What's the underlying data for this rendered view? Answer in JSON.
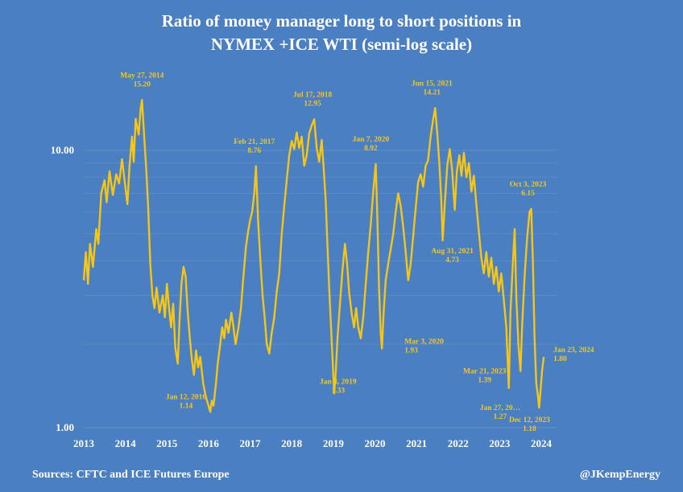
{
  "title": {
    "line1": "Ratio of money manager long to short positions in",
    "line2": "NYMEX +ICE WTI (semi-log scale)"
  },
  "footer": {
    "source": "Sources: CFTC and ICE Futures Europe",
    "credit": "@JKempEnergy"
  },
  "colors": {
    "background": "#4a7fc1",
    "line": "#f5c518",
    "annotation": "#f3c624",
    "grid": "#6d98cf"
  },
  "chart_data": {
    "type": "line",
    "y_scale": "log",
    "ylim": [
      1.0,
      20.0
    ],
    "xlim": [
      2013.0,
      2024.0
    ],
    "ytick_labels": [
      "1.00",
      "10.00"
    ],
    "ytick_values": [
      1.0,
      10.0
    ],
    "xtick_labels": [
      "2013",
      "2014",
      "2015",
      "2016",
      "2017",
      "2018",
      "2019",
      "2020",
      "2021",
      "2022",
      "2023",
      "2024"
    ],
    "grid": true,
    "series": [
      {
        "points": [
          [
            2013.0,
            3.4
          ],
          [
            2013.05,
            4.3
          ],
          [
            2013.1,
            3.3
          ],
          [
            2013.15,
            4.6
          ],
          [
            2013.22,
            3.8
          ],
          [
            2013.3,
            5.2
          ],
          [
            2013.35,
            4.6
          ],
          [
            2013.42,
            7.0
          ],
          [
            2013.5,
            7.8
          ],
          [
            2013.55,
            6.5
          ],
          [
            2013.62,
            8.4
          ],
          [
            2013.7,
            6.9
          ],
          [
            2013.78,
            8.2
          ],
          [
            2013.85,
            7.6
          ],
          [
            2013.92,
            9.3
          ],
          [
            2014.0,
            7.4
          ],
          [
            2014.05,
            6.4
          ],
          [
            2014.1,
            8.8
          ],
          [
            2014.16,
            11.2
          ],
          [
            2014.2,
            9.1
          ],
          [
            2014.25,
            13.0
          ],
          [
            2014.32,
            11.4
          ],
          [
            2014.37,
            14.2
          ],
          [
            2014.4,
            15.2
          ],
          [
            2014.44,
            12.0
          ],
          [
            2014.5,
            8.6
          ],
          [
            2014.55,
            6.2
          ],
          [
            2014.6,
            3.9
          ],
          [
            2014.65,
            3.0
          ],
          [
            2014.7,
            2.7
          ],
          [
            2014.75,
            3.2
          ],
          [
            2014.82,
            2.6
          ],
          [
            2014.9,
            3.0
          ],
          [
            2014.95,
            2.5
          ],
          [
            2015.0,
            3.3
          ],
          [
            2015.05,
            2.7
          ],
          [
            2015.1,
            2.3
          ],
          [
            2015.15,
            2.8
          ],
          [
            2015.2,
            1.95
          ],
          [
            2015.26,
            1.7
          ],
          [
            2015.3,
            2.4
          ],
          [
            2015.35,
            3.3
          ],
          [
            2015.4,
            3.8
          ],
          [
            2015.45,
            3.5
          ],
          [
            2015.5,
            2.6
          ],
          [
            2015.55,
            2.1
          ],
          [
            2015.6,
            1.75
          ],
          [
            2015.65,
            1.55
          ],
          [
            2015.7,
            1.9
          ],
          [
            2015.75,
            1.65
          ],
          [
            2015.8,
            1.8
          ],
          [
            2015.87,
            1.45
          ],
          [
            2015.93,
            1.3
          ],
          [
            2016.0,
            1.2
          ],
          [
            2016.04,
            1.14
          ],
          [
            2016.08,
            1.25
          ],
          [
            2016.12,
            1.2
          ],
          [
            2016.18,
            1.45
          ],
          [
            2016.22,
            1.7
          ],
          [
            2016.28,
            2.0
          ],
          [
            2016.33,
            2.3
          ],
          [
            2016.38,
            2.1
          ],
          [
            2016.42,
            2.45
          ],
          [
            2016.48,
            2.2
          ],
          [
            2016.55,
            2.6
          ],
          [
            2016.6,
            2.3
          ],
          [
            2016.65,
            2.0
          ],
          [
            2016.72,
            2.3
          ],
          [
            2016.78,
            2.7
          ],
          [
            2016.83,
            3.4
          ],
          [
            2016.9,
            4.5
          ],
          [
            2016.96,
            5.2
          ],
          [
            2017.0,
            5.6
          ],
          [
            2017.05,
            6.0
          ],
          [
            2017.1,
            7.0
          ],
          [
            2017.14,
            8.76
          ],
          [
            2017.19,
            5.6
          ],
          [
            2017.25,
            3.9
          ],
          [
            2017.3,
            3.0
          ],
          [
            2017.35,
            2.5
          ],
          [
            2017.4,
            2.0
          ],
          [
            2017.46,
            1.85
          ],
          [
            2017.52,
            2.2
          ],
          [
            2017.58,
            2.5
          ],
          [
            2017.64,
            3.1
          ],
          [
            2017.7,
            3.6
          ],
          [
            2017.76,
            5.0
          ],
          [
            2017.82,
            6.3
          ],
          [
            2017.88,
            7.8
          ],
          [
            2017.94,
            9.6
          ],
          [
            2018.0,
            10.8
          ],
          [
            2018.06,
            10.1
          ],
          [
            2018.12,
            11.6
          ],
          [
            2018.18,
            10.2
          ],
          [
            2018.24,
            11.2
          ],
          [
            2018.3,
            8.8
          ],
          [
            2018.36,
            9.6
          ],
          [
            2018.42,
            11.5
          ],
          [
            2018.48,
            12.3
          ],
          [
            2018.54,
            12.95
          ],
          [
            2018.6,
            10.2
          ],
          [
            2018.66,
            9.1
          ],
          [
            2018.72,
            10.9
          ],
          [
            2018.77,
            8.6
          ],
          [
            2018.82,
            6.5
          ],
          [
            2018.86,
            4.5
          ],
          [
            2018.9,
            3.2
          ],
          [
            2018.94,
            2.4
          ],
          [
            2018.98,
            1.8
          ],
          [
            2019.02,
            1.33
          ],
          [
            2019.06,
            1.6
          ],
          [
            2019.1,
            2.1
          ],
          [
            2019.16,
            2.8
          ],
          [
            2019.22,
            3.7
          ],
          [
            2019.28,
            4.6
          ],
          [
            2019.33,
            3.9
          ],
          [
            2019.38,
            3.1
          ],
          [
            2019.44,
            2.6
          ],
          [
            2019.5,
            2.3
          ],
          [
            2019.55,
            2.7
          ],
          [
            2019.6,
            2.3
          ],
          [
            2019.66,
            2.1
          ],
          [
            2019.72,
            2.5
          ],
          [
            2019.78,
            3.3
          ],
          [
            2019.84,
            4.3
          ],
          [
            2019.9,
            5.4
          ],
          [
            2019.96,
            7.1
          ],
          [
            2020.02,
            8.92
          ],
          [
            2020.06,
            5.6
          ],
          [
            2020.1,
            3.2
          ],
          [
            2020.14,
            2.2
          ],
          [
            2020.17,
            1.93
          ],
          [
            2020.21,
            2.6
          ],
          [
            2020.26,
            3.4
          ],
          [
            2020.32,
            3.9
          ],
          [
            2020.38,
            4.4
          ],
          [
            2020.44,
            5.0
          ],
          [
            2020.5,
            6.0
          ],
          [
            2020.56,
            7.0
          ],
          [
            2020.62,
            6.3
          ],
          [
            2020.68,
            5.3
          ],
          [
            2020.74,
            4.3
          ],
          [
            2020.8,
            3.4
          ],
          [
            2020.86,
            3.9
          ],
          [
            2020.92,
            4.9
          ],
          [
            2020.98,
            6.2
          ],
          [
            2021.04,
            7.7
          ],
          [
            2021.1,
            8.2
          ],
          [
            2021.16,
            7.4
          ],
          [
            2021.22,
            8.8
          ],
          [
            2021.28,
            9.2
          ],
          [
            2021.34,
            11.2
          ],
          [
            2021.4,
            12.9
          ],
          [
            2021.45,
            14.21
          ],
          [
            2021.5,
            11.5
          ],
          [
            2021.55,
            9.0
          ],
          [
            2021.6,
            6.4
          ],
          [
            2021.63,
            4.73
          ],
          [
            2021.68,
            6.4
          ],
          [
            2021.74,
            8.8
          ],
          [
            2021.8,
            10.1
          ],
          [
            2021.86,
            8.4
          ],
          [
            2021.92,
            6.1
          ],
          [
            2021.97,
            8.4
          ],
          [
            2022.03,
            9.6
          ],
          [
            2022.08,
            8.1
          ],
          [
            2022.14,
            9.8
          ],
          [
            2022.2,
            8.0
          ],
          [
            2022.26,
            9.0
          ],
          [
            2022.32,
            7.1
          ],
          [
            2022.38,
            8.1
          ],
          [
            2022.44,
            6.4
          ],
          [
            2022.5,
            5.1
          ],
          [
            2022.56,
            4.1
          ],
          [
            2022.62,
            3.6
          ],
          [
            2022.68,
            4.3
          ],
          [
            2022.74,
            3.5
          ],
          [
            2022.8,
            4.1
          ],
          [
            2022.86,
            3.3
          ],
          [
            2022.92,
            3.8
          ],
          [
            2022.98,
            3.1
          ],
          [
            2023.04,
            3.6
          ],
          [
            2023.1,
            2.9
          ],
          [
            2023.16,
            2.3
          ],
          [
            2023.22,
            1.39
          ],
          [
            2023.26,
            2.6
          ],
          [
            2023.3,
            3.5
          ],
          [
            2023.36,
            5.2
          ],
          [
            2023.4,
            3.0
          ],
          [
            2023.45,
            2.0
          ],
          [
            2023.5,
            1.6
          ],
          [
            2023.54,
            2.3
          ],
          [
            2023.6,
            3.5
          ],
          [
            2023.66,
            4.8
          ],
          [
            2023.72,
            6.0
          ],
          [
            2023.76,
            6.15
          ],
          [
            2023.8,
            3.9
          ],
          [
            2023.84,
            2.1
          ],
          [
            2023.88,
            1.45
          ],
          [
            2023.92,
            1.3
          ],
          [
            2023.95,
            1.18
          ],
          [
            2023.98,
            1.35
          ],
          [
            2024.02,
            1.6
          ],
          [
            2024.06,
            1.8
          ]
        ]
      }
    ],
    "annotations": [
      {
        "date": "May 27, 2014",
        "value": "15.20",
        "x": 2014.4,
        "y": 15.2
      },
      {
        "date": "Jan 12, 2016",
        "value": "1.14",
        "x": 2016.04,
        "y": 1.14
      },
      {
        "date": "Feb 21, 2017",
        "value": "8.76",
        "x": 2017.14,
        "y": 8.76
      },
      {
        "date": "Jul 17, 2018",
        "value": "12.95",
        "x": 2018.54,
        "y": 12.95
      },
      {
        "date": "Jan 8, 2019",
        "value": "1.33",
        "x": 2019.02,
        "y": 1.33
      },
      {
        "date": "Jan 7, 2020",
        "value": "8.92",
        "x": 2020.02,
        "y": 8.92
      },
      {
        "date": "Mar 3, 2020",
        "value": "1.93",
        "x": 2020.17,
        "y": 1.93
      },
      {
        "date": "Jun 15, 2021",
        "value": "14.21",
        "x": 2021.45,
        "y": 14.21
      },
      {
        "date": "Aug 31, 2021",
        "value": "4.73",
        "x": 2021.63,
        "y": 4.73
      },
      {
        "date": "Mar 21, 2023",
        "value": "1.39",
        "x": 2023.22,
        "y": 1.39
      },
      {
        "date": "Jan 27, 20…",
        "value": "1.27",
        "x": 2023.07,
        "y": 1.27
      },
      {
        "date": "Oct 3, 2023",
        "value": "6.15",
        "x": 2023.76,
        "y": 6.15
      },
      {
        "date": "Dec 12, 2023",
        "value": "1.18",
        "x": 2023.95,
        "y": 1.18
      },
      {
        "date": "Jan 23, 2024",
        "value": "1.80",
        "x": 2024.06,
        "y": 1.8
      }
    ]
  }
}
